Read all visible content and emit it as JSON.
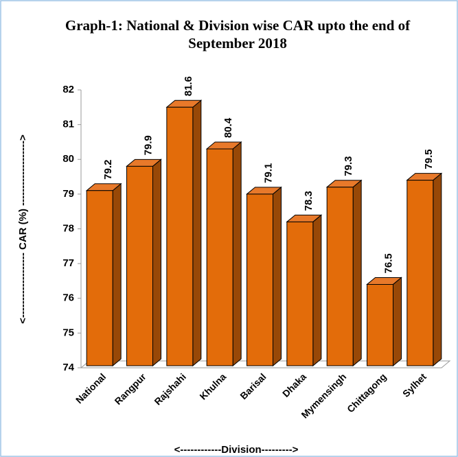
{
  "chart_data": {
    "type": "bar3d",
    "title": [
      "Graph-1: National & Division wise CAR upto the end of",
      "September 2018"
    ],
    "x_label": "<------------Division--------->",
    "y_label": "<------------------- CAR (%) ------------------->",
    "categories": [
      "National",
      "Rangpur",
      "Rajshahi",
      "Khulna",
      "Barisal",
      "Dhaka",
      "Mymensingh",
      "Chittagong",
      "Sylhet"
    ],
    "values": [
      79.2,
      79.9,
      81.6,
      80.4,
      79.1,
      78.3,
      79.3,
      76.5,
      79.5
    ],
    "color": "#e36c0a",
    "ylim": [
      74,
      82
    ],
    "yticks": [
      74,
      75,
      76,
      77,
      78,
      79,
      80,
      81,
      82
    ]
  }
}
